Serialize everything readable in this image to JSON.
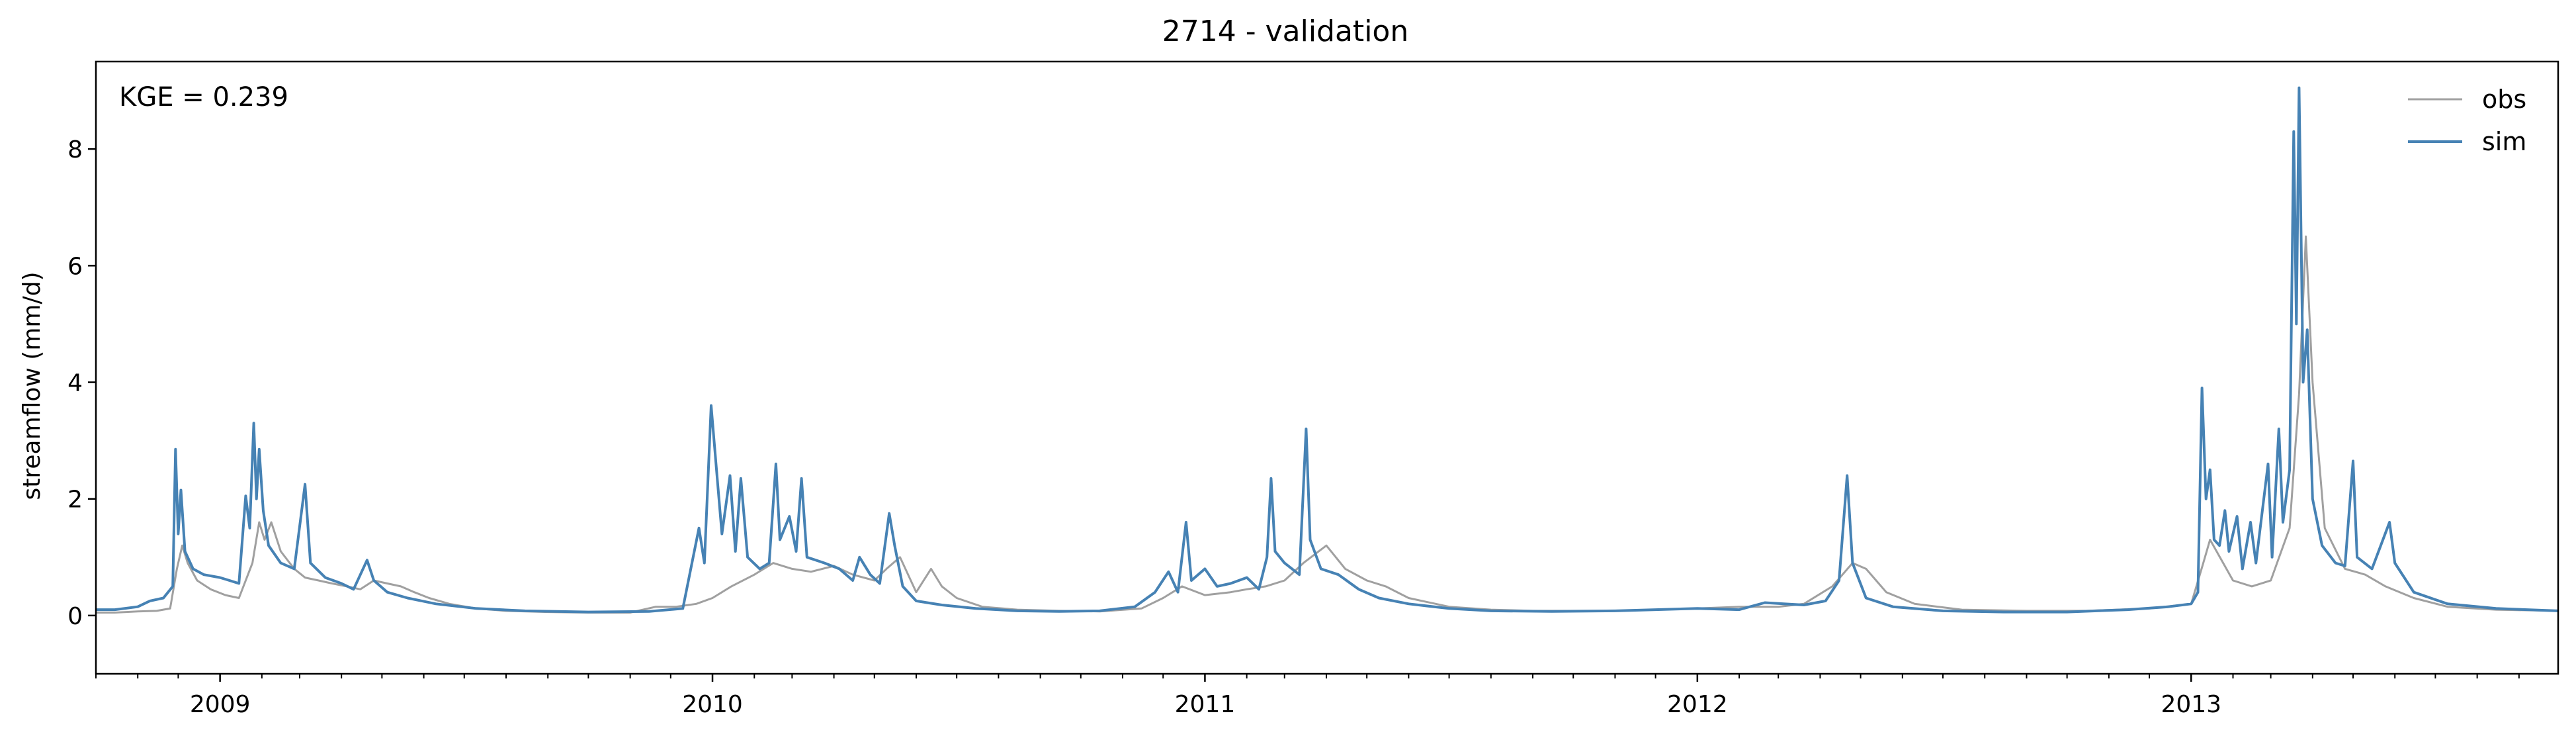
{
  "chart_data": {
    "type": "line",
    "title": "2714 - validation",
    "xlabel": "",
    "ylabel": "streamflow (mm/d)",
    "annotation": "KGE = 0.239",
    "xlim": [
      "2008-10-01",
      "2013-09-30"
    ],
    "ylim": [
      -1,
      9.5
    ],
    "yticks": [
      0,
      2,
      4,
      6,
      8
    ],
    "xticks": [
      {
        "date": "2009-01-01",
        "label": "2009"
      },
      {
        "date": "2010-01-01",
        "label": "2010"
      },
      {
        "date": "2011-01-01",
        "label": "2011"
      },
      {
        "date": "2012-01-01",
        "label": "2012"
      },
      {
        "date": "2013-01-01",
        "label": "2013"
      }
    ],
    "grid": false,
    "legend_position": "top-right",
    "series": [
      {
        "name": "obs",
        "color": "#a0a0a0",
        "points": [
          [
            "2008-10-01",
            0.05
          ],
          [
            "2008-10-15",
            0.05
          ],
          [
            "2008-11-01",
            0.07
          ],
          [
            "2008-11-15",
            0.08
          ],
          [
            "2008-11-25",
            0.12
          ],
          [
            "2008-11-30",
            0.8
          ],
          [
            "2008-12-04",
            1.2
          ],
          [
            "2008-12-08",
            0.9
          ],
          [
            "2008-12-15",
            0.6
          ],
          [
            "2008-12-25",
            0.45
          ],
          [
            "2009-01-05",
            0.35
          ],
          [
            "2009-01-15",
            0.3
          ],
          [
            "2009-01-25",
            0.9
          ],
          [
            "2009-01-30",
            1.6
          ],
          [
            "2009-02-03",
            1.3
          ],
          [
            "2009-02-08",
            1.6
          ],
          [
            "2009-02-15",
            1.1
          ],
          [
            "2009-02-25",
            0.8
          ],
          [
            "2009-03-05",
            0.65
          ],
          [
            "2009-03-15",
            0.6
          ],
          [
            "2009-03-25",
            0.55
          ],
          [
            "2009-04-05",
            0.5
          ],
          [
            "2009-04-15",
            0.45
          ],
          [
            "2009-04-25",
            0.6
          ],
          [
            "2009-05-05",
            0.55
          ],
          [
            "2009-05-15",
            0.5
          ],
          [
            "2009-05-25",
            0.4
          ],
          [
            "2009-06-05",
            0.3
          ],
          [
            "2009-06-20",
            0.2
          ],
          [
            "2009-07-10",
            0.12
          ],
          [
            "2009-08-01",
            0.08
          ],
          [
            "2009-09-01",
            0.06
          ],
          [
            "2009-10-01",
            0.05
          ],
          [
            "2009-11-01",
            0.05
          ],
          [
            "2009-11-20",
            0.15
          ],
          [
            "2009-12-05",
            0.15
          ],
          [
            "2009-12-20",
            0.2
          ],
          [
            "2010-01-01",
            0.3
          ],
          [
            "2010-01-15",
            0.5
          ],
          [
            "2010-02-01",
            0.7
          ],
          [
            "2010-02-15",
            0.9
          ],
          [
            "2010-03-01",
            0.8
          ],
          [
            "2010-03-15",
            0.75
          ],
          [
            "2010-04-01",
            0.85
          ],
          [
            "2010-04-15",
            0.7
          ],
          [
            "2010-05-01",
            0.6
          ],
          [
            "2010-05-10",
            0.8
          ],
          [
            "2010-05-20",
            1.0
          ],
          [
            "2010-06-01",
            0.4
          ],
          [
            "2010-06-12",
            0.8
          ],
          [
            "2010-06-20",
            0.5
          ],
          [
            "2010-07-01",
            0.3
          ],
          [
            "2010-07-20",
            0.15
          ],
          [
            "2010-08-15",
            0.1
          ],
          [
            "2010-09-15",
            0.08
          ],
          [
            "2010-10-15",
            0.07
          ],
          [
            "2010-11-15",
            0.12
          ],
          [
            "2010-12-01",
            0.3
          ],
          [
            "2010-12-15",
            0.5
          ],
          [
            "2011-01-01",
            0.35
          ],
          [
            "2011-01-20",
            0.4
          ],
          [
            "2011-02-01",
            0.45
          ],
          [
            "2011-02-15",
            0.5
          ],
          [
            "2011-03-01",
            0.6
          ],
          [
            "2011-03-15",
            0.9
          ],
          [
            "2011-04-01",
            1.2
          ],
          [
            "2011-04-15",
            0.8
          ],
          [
            "2011-05-01",
            0.6
          ],
          [
            "2011-05-15",
            0.5
          ],
          [
            "2011-06-01",
            0.3
          ],
          [
            "2011-07-01",
            0.15
          ],
          [
            "2011-08-01",
            0.1
          ],
          [
            "2011-09-01",
            0.08
          ],
          [
            "2011-10-01",
            0.08
          ],
          [
            "2011-11-01",
            0.08
          ],
          [
            "2011-12-01",
            0.1
          ],
          [
            "2012-01-01",
            0.12
          ],
          [
            "2012-02-01",
            0.15
          ],
          [
            "2012-03-01",
            0.15
          ],
          [
            "2012-03-20",
            0.2
          ],
          [
            "2012-04-10",
            0.5
          ],
          [
            "2012-04-25",
            0.9
          ],
          [
            "2012-05-05",
            0.8
          ],
          [
            "2012-05-20",
            0.4
          ],
          [
            "2012-06-10",
            0.2
          ],
          [
            "2012-07-15",
            0.1
          ],
          [
            "2012-09-01",
            0.08
          ],
          [
            "2012-10-15",
            0.08
          ],
          [
            "2012-12-01",
            0.12
          ],
          [
            "2013-01-01",
            0.2
          ],
          [
            "2013-01-10",
            0.9
          ],
          [
            "2013-01-15",
            1.3
          ],
          [
            "2013-02-01",
            0.6
          ],
          [
            "2013-02-15",
            0.5
          ],
          [
            "2013-03-01",
            0.6
          ],
          [
            "2013-03-15",
            1.5
          ],
          [
            "2013-03-22",
            3.8
          ],
          [
            "2013-03-27",
            6.5
          ],
          [
            "2013-04-01",
            4.0
          ],
          [
            "2013-04-10",
            1.5
          ],
          [
            "2013-04-25",
            0.8
          ],
          [
            "2013-05-10",
            0.7
          ],
          [
            "2013-05-25",
            0.5
          ],
          [
            "2013-06-15",
            0.3
          ],
          [
            "2013-07-10",
            0.15
          ],
          [
            "2013-08-15",
            0.1
          ],
          [
            "2013-09-30",
            0.08
          ]
        ]
      },
      {
        "name": "sim",
        "color": "#4682b4",
        "points": [
          [
            "2008-10-01",
            0.1
          ],
          [
            "2008-10-15",
            0.1
          ],
          [
            "2008-11-01",
            0.15
          ],
          [
            "2008-11-10",
            0.25
          ],
          [
            "2008-11-20",
            0.3
          ],
          [
            "2008-11-27",
            0.5
          ],
          [
            "2008-11-29",
            2.85
          ],
          [
            "2008-12-01",
            1.4
          ],
          [
            "2008-12-03",
            2.15
          ],
          [
            "2008-12-06",
            1.1
          ],
          [
            "2008-12-12",
            0.8
          ],
          [
            "2008-12-20",
            0.7
          ],
          [
            "2009-01-01",
            0.65
          ],
          [
            "2009-01-08",
            0.6
          ],
          [
            "2009-01-15",
            0.55
          ],
          [
            "2009-01-20",
            2.05
          ],
          [
            "2009-01-23",
            1.5
          ],
          [
            "2009-01-26",
            3.3
          ],
          [
            "2009-01-28",
            2.0
          ],
          [
            "2009-01-30",
            2.85
          ],
          [
            "2009-02-02",
            1.8
          ],
          [
            "2009-02-06",
            1.2
          ],
          [
            "2009-02-15",
            0.9
          ],
          [
            "2009-02-25",
            0.8
          ],
          [
            "2009-03-05",
            2.25
          ],
          [
            "2009-03-09",
            0.9
          ],
          [
            "2009-03-20",
            0.65
          ],
          [
            "2009-04-01",
            0.55
          ],
          [
            "2009-04-10",
            0.45
          ],
          [
            "2009-04-20",
            0.95
          ],
          [
            "2009-04-25",
            0.6
          ],
          [
            "2009-05-05",
            0.4
          ],
          [
            "2009-05-20",
            0.3
          ],
          [
            "2009-06-10",
            0.2
          ],
          [
            "2009-07-10",
            0.12
          ],
          [
            "2009-08-15",
            0.08
          ],
          [
            "2009-10-01",
            0.06
          ],
          [
            "2009-11-15",
            0.07
          ],
          [
            "2009-12-10",
            0.12
          ],
          [
            "2009-12-22",
            1.5
          ],
          [
            "2009-12-26",
            0.9
          ],
          [
            "2009-12-31",
            3.6
          ],
          [
            "2010-01-04",
            2.5
          ],
          [
            "2010-01-08",
            1.4
          ],
          [
            "2010-01-14",
            2.4
          ],
          [
            "2010-01-18",
            1.1
          ],
          [
            "2010-01-22",
            2.35
          ],
          [
            "2010-01-27",
            1.0
          ],
          [
            "2010-02-05",
            0.8
          ],
          [
            "2010-02-12",
            0.9
          ],
          [
            "2010-02-17",
            2.6
          ],
          [
            "2010-02-20",
            1.3
          ],
          [
            "2010-02-27",
            1.7
          ],
          [
            "2010-03-04",
            1.1
          ],
          [
            "2010-03-08",
            2.35
          ],
          [
            "2010-03-12",
            1.0
          ],
          [
            "2010-03-25",
            0.9
          ],
          [
            "2010-04-05",
            0.8
          ],
          [
            "2010-04-15",
            0.6
          ],
          [
            "2010-04-20",
            1.0
          ],
          [
            "2010-04-28",
            0.7
          ],
          [
            "2010-05-05",
            0.55
          ],
          [
            "2010-05-12",
            1.75
          ],
          [
            "2010-05-16",
            1.2
          ],
          [
            "2010-05-22",
            0.5
          ],
          [
            "2010-06-01",
            0.25
          ],
          [
            "2010-06-20",
            0.18
          ],
          [
            "2010-07-15",
            0.12
          ],
          [
            "2010-08-15",
            0.08
          ],
          [
            "2010-09-15",
            0.07
          ],
          [
            "2010-10-15",
            0.08
          ],
          [
            "2010-11-10",
            0.15
          ],
          [
            "2010-11-25",
            0.4
          ],
          [
            "2010-12-05",
            0.75
          ],
          [
            "2010-12-12",
            0.4
          ],
          [
            "2010-12-18",
            1.6
          ],
          [
            "2010-12-22",
            0.6
          ],
          [
            "2011-01-01",
            0.8
          ],
          [
            "2011-01-10",
            0.5
          ],
          [
            "2011-01-20",
            0.55
          ],
          [
            "2011-02-01",
            0.65
          ],
          [
            "2011-02-10",
            0.45
          ],
          [
            "2011-02-16",
            1.0
          ],
          [
            "2011-02-19",
            2.35
          ],
          [
            "2011-02-22",
            1.1
          ],
          [
            "2011-03-01",
            0.9
          ],
          [
            "2011-03-12",
            0.7
          ],
          [
            "2011-03-17",
            3.2
          ],
          [
            "2011-03-20",
            1.3
          ],
          [
            "2011-03-28",
            0.8
          ],
          [
            "2011-04-10",
            0.7
          ],
          [
            "2011-04-25",
            0.45
          ],
          [
            "2011-05-10",
            0.3
          ],
          [
            "2011-06-01",
            0.2
          ],
          [
            "2011-07-01",
            0.12
          ],
          [
            "2011-08-01",
            0.08
          ],
          [
            "2011-09-15",
            0.07
          ],
          [
            "2011-11-01",
            0.08
          ],
          [
            "2011-12-01",
            0.1
          ],
          [
            "2012-01-01",
            0.12
          ],
          [
            "2012-02-01",
            0.1
          ],
          [
            "2012-02-20",
            0.22
          ],
          [
            "2012-03-05",
            0.2
          ],
          [
            "2012-03-20",
            0.18
          ],
          [
            "2012-04-05",
            0.25
          ],
          [
            "2012-04-15",
            0.6
          ],
          [
            "2012-04-21",
            2.4
          ],
          [
            "2012-04-25",
            0.9
          ],
          [
            "2012-05-05",
            0.3
          ],
          [
            "2012-05-25",
            0.15
          ],
          [
            "2012-07-01",
            0.08
          ],
          [
            "2012-08-15",
            0.06
          ],
          [
            "2012-10-01",
            0.06
          ],
          [
            "2012-11-15",
            0.1
          ],
          [
            "2012-12-15",
            0.15
          ],
          [
            "2013-01-01",
            0.2
          ],
          [
            "2013-01-06",
            0.4
          ],
          [
            "2013-01-09",
            3.9
          ],
          [
            "2013-01-12",
            2.0
          ],
          [
            "2013-01-15",
            2.5
          ],
          [
            "2013-01-18",
            1.3
          ],
          [
            "2013-01-22",
            1.2
          ],
          [
            "2013-01-26",
            1.8
          ],
          [
            "2013-01-29",
            1.1
          ],
          [
            "2013-02-04",
            1.7
          ],
          [
            "2013-02-08",
            0.8
          ],
          [
            "2013-02-14",
            1.6
          ],
          [
            "2013-02-18",
            0.9
          ],
          [
            "2013-02-27",
            2.6
          ],
          [
            "2013-03-02",
            1.0
          ],
          [
            "2013-03-07",
            3.2
          ],
          [
            "2013-03-10",
            1.6
          ],
          [
            "2013-03-15",
            2.5
          ],
          [
            "2013-03-18",
            8.3
          ],
          [
            "2013-03-20",
            5.0
          ],
          [
            "2013-03-22",
            9.05
          ],
          [
            "2013-03-25",
            4.0
          ],
          [
            "2013-03-28",
            4.9
          ],
          [
            "2013-04-01",
            2.0
          ],
          [
            "2013-04-08",
            1.2
          ],
          [
            "2013-04-18",
            0.9
          ],
          [
            "2013-04-25",
            0.85
          ],
          [
            "2013-05-01",
            2.65
          ],
          [
            "2013-05-04",
            1.0
          ],
          [
            "2013-05-15",
            0.8
          ],
          [
            "2013-05-28",
            1.6
          ],
          [
            "2013-06-01",
            0.9
          ],
          [
            "2013-06-15",
            0.4
          ],
          [
            "2013-07-10",
            0.2
          ],
          [
            "2013-08-15",
            0.12
          ],
          [
            "2013-09-30",
            0.08
          ]
        ]
      }
    ]
  }
}
